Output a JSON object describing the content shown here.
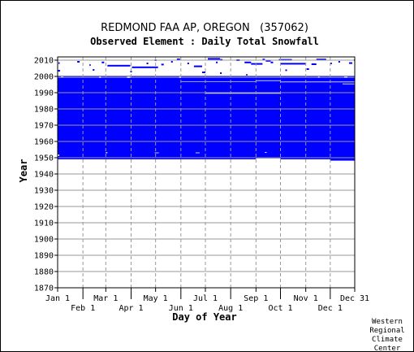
{
  "chart_data": {
    "type": "heatmap",
    "title": "REDMOND FAA AP, OREGON   (357062)",
    "subtitle": "Observed Element : Daily Total Snowfall",
    "xlabel": "Day of Year",
    "ylabel": "Year",
    "ylim": [
      1870,
      2012
    ],
    "x_ticks_upper": [
      "Jan 1",
      "Mar 1",
      "May 1",
      "Jul 1",
      "Sep 1",
      "Nov 1",
      "Dec 31"
    ],
    "x_ticks_lower": [
      "Feb 1",
      "Apr 1",
      "Jun 1",
      "Aug 1",
      "Oct 1",
      "Dec 1"
    ],
    "y_ticks": [
      "2010",
      "2000",
      "1990",
      "1980",
      "1970",
      "1960",
      "1950",
      "1940",
      "1930",
      "1920",
      "1910",
      "1900",
      "1890",
      "1880",
      "1870"
    ],
    "grid": "dashed vertical, solid horizontal",
    "fill_color": "#0000ff",
    "record_period": "1949-1999 (near continuous), sparse observations 2000-2011"
  },
  "credit": {
    "line1": "Western",
    "line2": "Regional",
    "line3": "Climate",
    "line4": "Center"
  }
}
